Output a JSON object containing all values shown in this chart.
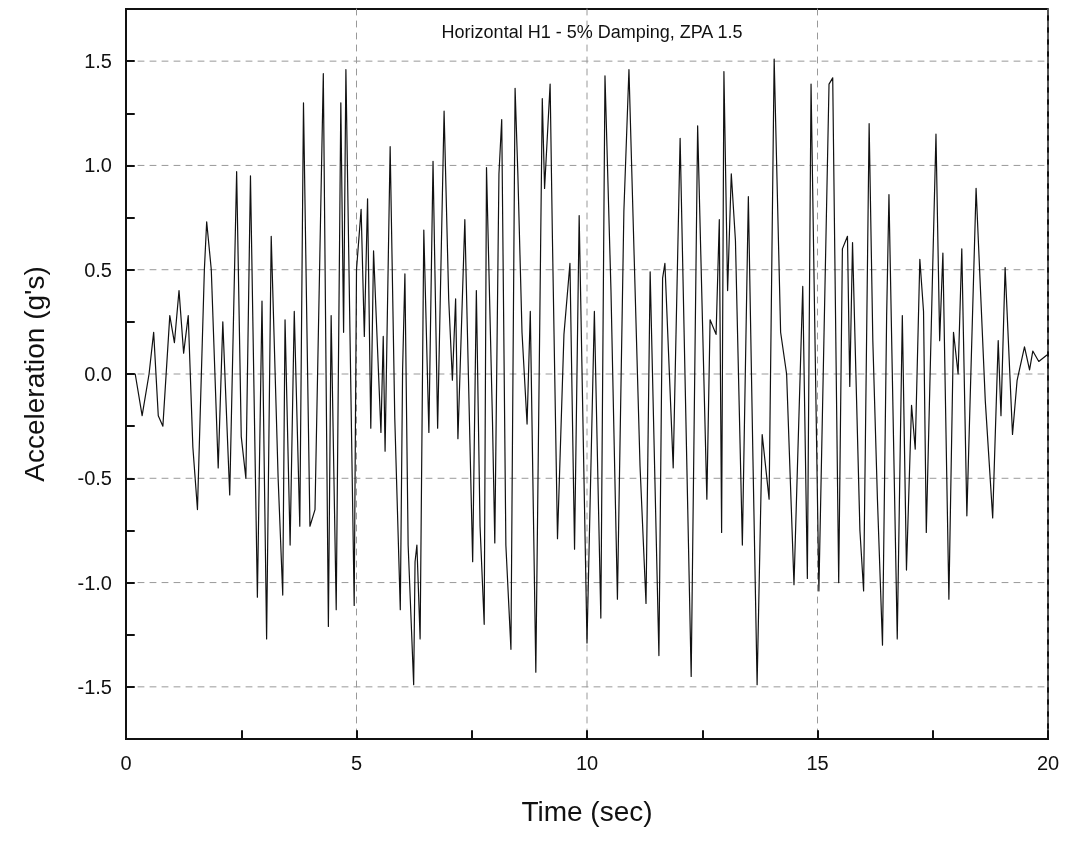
{
  "chart_data": {
    "type": "line",
    "title": "Horizontal H1 - 5% Damping, ZPA 1.5",
    "xlabel": "Time (sec)",
    "ylabel": "Acceleration (g's)",
    "xlim": [
      0,
      20
    ],
    "ylim": [
      -1.75,
      1.75
    ],
    "xticks": [
      0,
      {
        "value": 2.5,
        "label": null
      },
      5,
      {
        "value": 7.5,
        "label": null
      },
      10,
      {
        "value": 12.5,
        "label": null
      },
      15,
      {
        "value": 17.5,
        "label": null
      },
      20
    ],
    "yticks": [
      {
        "value": -1.75,
        "label": null
      },
      -1.5,
      {
        "value": -1.25,
        "label": null
      },
      {
        "value": -1,
        "label": "-1.0"
      },
      {
        "value": -0.75,
        "label": null
      },
      -0.5,
      {
        "value": -0.25,
        "label": null
      },
      {
        "value": 0,
        "label": "0.0"
      },
      {
        "value": 0.25,
        "label": null
      },
      0.5,
      {
        "value": 0.75,
        "label": null
      },
      {
        "value": 1,
        "label": "1.0"
      },
      {
        "value": 1.25,
        "label": null
      },
      1.5,
      {
        "value": 1.75,
        "label": null
      }
    ],
    "grid": true,
    "marker": "none",
    "line_style": "solid",
    "series": [
      {
        "color": "#111111",
        "x": [
          0,
          0.2,
          0.35,
          0.5,
          0.6,
          0.7,
          0.8,
          0.95,
          1.05,
          1.15,
          1.25,
          1.35,
          1.45,
          1.55,
          1.7,
          1.75,
          1.85,
          2.0,
          2.1,
          2.25,
          2.4,
          2.5,
          2.6,
          2.7,
          2.85,
          2.95,
          3.05,
          3.15,
          3.3,
          3.4,
          3.45,
          3.56,
          3.65,
          3.77,
          3.85,
          3.99,
          4.1,
          4.28,
          4.39,
          4.45,
          4.56,
          4.66,
          4.72,
          4.77,
          4.95,
          5.0,
          5.1,
          5.17,
          5.24,
          5.31,
          5.37,
          5.53,
          5.58,
          5.62,
          5.73,
          5.83,
          5.95,
          6.0,
          6.05,
          6.12,
          6.24,
          6.27,
          6.31,
          6.38,
          6.46,
          6.57,
          6.66,
          6.76,
          6.9,
          7.0,
          7.08,
          7.15,
          7.2,
          7.35,
          7.52,
          7.6,
          7.68,
          7.77,
          7.82,
          7.95,
          8.0,
          8.09,
          8.15,
          8.24,
          8.35,
          8.44,
          8.5,
          8.59,
          8.7,
          8.77,
          8.89,
          9.03,
          9.08,
          9.2,
          9.25,
          9.36,
          9.5,
          9.63,
          9.73,
          9.83,
          10.0,
          10.16,
          10.3,
          10.39,
          10.52,
          10.66,
          10.8,
          10.91,
          11.05,
          11.15,
          11.28,
          11.37,
          11.56,
          11.64,
          11.69,
          11.87,
          12.02,
          12.26,
          12.4,
          12.6,
          12.67,
          12.8,
          12.87,
          12.92,
          12.97,
          13.05,
          13.13,
          13.22,
          13.37,
          13.5,
          13.6,
          13.69,
          13.8,
          13.95,
          14.06,
          14.2,
          14.33,
          14.49,
          14.68,
          14.78,
          14.86,
          15.03,
          15.25,
          15.33,
          15.46,
          15.54,
          15.65,
          15.7,
          15.76,
          15.92,
          16.0,
          16.12,
          16.2,
          16.3,
          16.41,
          16.5,
          16.55,
          16.73,
          16.84,
          16.93,
          17.04,
          17.12,
          17.22,
          17.3,
          17.36,
          17.5,
          17.57,
          17.65,
          17.72,
          17.85,
          17.95,
          18.05,
          18.13,
          18.24,
          18.44,
          18.53,
          18.64,
          18.8,
          18.92,
          18.98,
          19.07,
          19.23,
          19.33,
          19.49,
          19.6,
          19.67,
          19.8,
          19.97
        ],
        "values": [
          0,
          0,
          -0.2,
          0,
          0.2,
          -0.2,
          -0.25,
          0.28,
          0.15,
          0.4,
          0.1,
          0.28,
          -0.35,
          -0.65,
          0.5,
          0.73,
          0.5,
          -0.45,
          0.25,
          -0.58,
          0.97,
          -0.3,
          -0.5,
          0.95,
          -1.07,
          0.35,
          -1.27,
          0.66,
          -0.5,
          -1.06,
          0.26,
          -0.82,
          0.3,
          -0.73,
          1.3,
          -0.73,
          -0.65,
          1.44,
          -1.21,
          0.28,
          -1.13,
          1.3,
          0.2,
          1.46,
          -1.11,
          0.5,
          0.79,
          0.18,
          0.84,
          -0.26,
          0.59,
          -0.28,
          0.18,
          -0.37,
          1.09,
          -0.21,
          -1.13,
          0.02,
          0.48,
          -0.82,
          -1.49,
          -0.9,
          -0.82,
          -1.27,
          0.69,
          -0.28,
          1.02,
          -0.26,
          1.26,
          0.36,
          -0.03,
          0.36,
          -0.31,
          0.74,
          -0.9,
          0.4,
          -0.73,
          -1.2,
          0.99,
          -0.23,
          -0.81,
          0.96,
          1.22,
          -0.82,
          -1.32,
          1.37,
          0.96,
          0.2,
          -0.24,
          0.3,
          -1.43,
          1.32,
          0.89,
          1.39,
          0.65,
          -0.79,
          0.19,
          0.53,
          -0.84,
          0.76,
          -1.29,
          0.3,
          -1.17,
          1.43,
          0.4,
          -1.08,
          0.78,
          1.46,
          0.35,
          -0.44,
          -1.1,
          0.49,
          -1.35,
          0.46,
          0.53,
          -0.45,
          1.13,
          -1.45,
          1.19,
          -0.6,
          0.26,
          0.19,
          0.74,
          -0.76,
          1.45,
          0.4,
          0.96,
          0.64,
          -0.82,
          0.85,
          -0.41,
          -1.49,
          -0.29,
          -0.6,
          1.51,
          0.2,
          0,
          -1.01,
          0.42,
          -0.98,
          1.39,
          -1.04,
          1.39,
          1.42,
          -1.0,
          0.6,
          0.66,
          -0.06,
          0.63,
          -0.75,
          -1.04,
          1.2,
          0.16,
          -0.6,
          -1.3,
          0.28,
          0.86,
          -1.27,
          0.28,
          -0.94,
          -0.15,
          -0.36,
          0.55,
          0.3,
          -0.76,
          0.52,
          1.15,
          0.16,
          0.58,
          -1.08,
          0.2,
          0,
          0.6,
          -0.68,
          0.89,
          0.43,
          -0.13,
          -0.69,
          0.16,
          -0.2,
          0.51,
          -0.29,
          -0.03,
          0.13,
          0.02,
          0.11,
          0.06,
          0.09
        ]
      }
    ]
  }
}
